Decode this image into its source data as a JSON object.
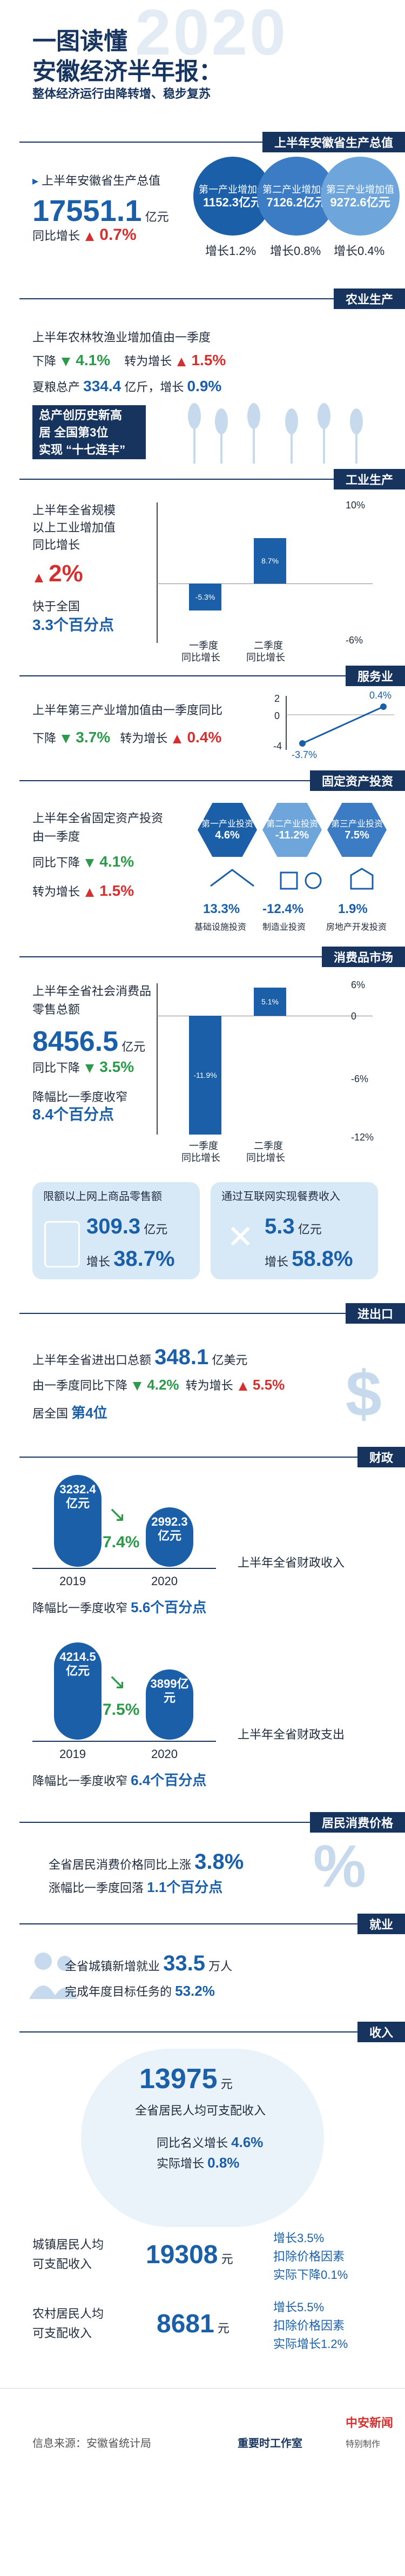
{
  "header": {
    "line1": "一图读懂",
    "line2": "安徽经济半年报：",
    "line3": "整体经济运行由降转增、稳步复苏",
    "year_watermark": "2020"
  },
  "gdp": {
    "tag": "上半年安徽省生产总值",
    "label": "上半年安徽省生产总值",
    "value": "17551.1",
    "unit": "亿元",
    "growth_label": "同比增长",
    "growth": "0.7%",
    "industries": [
      {
        "name": "第一产业增加值",
        "value": "1152.3亿元",
        "growth": "增长1.2%"
      },
      {
        "name": "第二产业增加值",
        "value": "7126.2亿元",
        "growth": "增长0.8%"
      },
      {
        "name": "第三产业增加值",
        "value": "9272.6亿元",
        "growth": "增长0.4%"
      }
    ]
  },
  "agri": {
    "tag": "农业生产",
    "line1": "上半年农林牧渔业增加值由一季度",
    "drop_label": "下降",
    "drop": "4.1%",
    "turn_label": "转为增长",
    "turn": "1.5%",
    "summer_pre": "夏粮总产",
    "summer_value": "334.4",
    "summer_unit": "亿斤，增长",
    "summer_growth": "0.9%",
    "box1": "总产创历史新高",
    "box2": "居 全国第3位",
    "box3": "实现 “十七连丰”"
  },
  "industry": {
    "tag": "工业生产",
    "line1": "上半年全省规模",
    "line2": "以上工业增加值",
    "line3": "同比增长",
    "value": "2%",
    "faster": "快于全国",
    "faster_value": "3.3个百分点",
    "chart_top": "10%",
    "chart_bottom": "-6%",
    "cat1": "一季度",
    "cat1b": "同比增长",
    "cat2": "二季度",
    "cat2b": "同比增长",
    "bar1": "-5.3%",
    "bar2": "8.7%"
  },
  "service": {
    "tag": "服务业",
    "line": "上半年第三产业增加值由一季度同比",
    "drop_label": "下降",
    "drop": "3.7%",
    "turn_label": "转为增长",
    "turn": "0.4%",
    "axis_top": "2",
    "axis_mid": "0",
    "axis_bottom": "-4",
    "p1": "-3.7%",
    "p2": "0.4%"
  },
  "invest": {
    "tag": "固定资产投资",
    "line1": "上半年全省固定资产投资",
    "line2": "由一季度",
    "drop_label": "同比下降",
    "drop": "4.1%",
    "turn_label": "转为增长",
    "turn": "1.5%",
    "hexes": [
      {
        "name": "第一产业投资",
        "value": "4.6%"
      },
      {
        "name": "第二产业投资",
        "value": "-11.2%"
      },
      {
        "name": "第三产业投资",
        "value": "7.5%"
      }
    ],
    "sub": [
      {
        "value": "13.3%",
        "name": "基础设施投资"
      },
      {
        "value": "-12.4%",
        "name": "制造业投资"
      },
      {
        "value": "1.9%",
        "name": "房地产开发投资"
      }
    ]
  },
  "consume": {
    "tag": "消费品市场",
    "line1": "上半年全省社会消费品",
    "line2": "零售总额",
    "value": "8456.5",
    "unit": "亿元",
    "drop_label": "同比下降",
    "drop": "3.5%",
    "narrow_label": "降幅比一季度收窄",
    "narrow": "8.4个百分点",
    "axis_top": "6%",
    "axis_zero": "0",
    "axis_mid": "-6%",
    "axis_bottom": "-12%",
    "bar1": "-11.9%",
    "bar2": "5.1%",
    "cat1": "一季度",
    "cat1b": "同比增长",
    "cat2": "二季度",
    "cat2b": "同比增长",
    "card1_title": "限额以上网上商品零售额",
    "card1_value": "309.3",
    "card1_unit": "亿元",
    "card1_growth_label": "增长",
    "card1_growth": "38.7%",
    "card2_title": "通过互联网实现餐费收入",
    "card2_value": "5.3",
    "card2_unit": "亿元",
    "card2_growth_label": "增长",
    "card2_growth": "58.8%"
  },
  "trade": {
    "tag": "进出口",
    "line1": "上半年全省进出口总额",
    "value": "348.1",
    "unit": "亿美元",
    "line2": "由一季度同比下降",
    "drop": "4.2%",
    "turn_label": "转为增长",
    "turn": "5.5%",
    "rank_pre": "居全国",
    "rank": "第4位"
  },
  "finance": {
    "tag": "财政",
    "rev_2019": "3232.4亿元",
    "rev_2020": "2992.3亿元",
    "rev_change": "7.4%",
    "year1": "2019",
    "year2": "2020",
    "rev_label": "上半年全省财政收入",
    "rev_narrow": "降幅比一季度收窄",
    "rev_narrow_value": "5.6个百分点",
    "exp_2019": "4214.5亿元",
    "exp_2020": "3899亿元",
    "exp_change": "7.5%",
    "exp_label": "上半年全省财政支出",
    "exp_narrow": "降幅比一季度收窄",
    "exp_narrow_value": "6.4个百分点"
  },
  "cpi": {
    "tag": "居民消费价格",
    "line1_pre": "全省居民消费价格同比上涨",
    "value": "3.8%",
    "line2_pre": "涨幅比一季度回落",
    "line2_value": "1.1个百分点"
  },
  "employ": {
    "tag": "就业",
    "line1_pre": "全省城镇新增就业",
    "value": "33.5",
    "unit": "万人",
    "line2_pre": "完成年度目标任务的",
    "line2_value": "53.2%"
  },
  "income": {
    "tag": "收入",
    "value": "13975",
    "unit": "元",
    "label": "全省居民人均可支配收入",
    "nominal_label": "同比名义增长",
    "nominal": "4.6%",
    "real_label": "实际增长",
    "real": "0.8%",
    "urban_label1": "城镇居民人均",
    "urban_label2": "可支配收入",
    "urban_value": "19308",
    "urban_unit": "元",
    "urban_growth": "增长3.5%",
    "urban_real1": "扣除价格因素",
    "urban_real2": "实际下降0.1%",
    "rural_label1": "农村居民人均",
    "rural_label2": "可支配收入",
    "rural_value": "8681",
    "rural_unit": "元",
    "rural_growth": "增长5.5%",
    "rural_real1": "扣除价格因素",
    "rural_real2": "实际增长1.2%"
  },
  "footer": {
    "source": "信息来源：安徽省统计局",
    "brand1": "重要时工作室",
    "brand2": "中安新闻",
    "brand3": "特别制作"
  }
}
